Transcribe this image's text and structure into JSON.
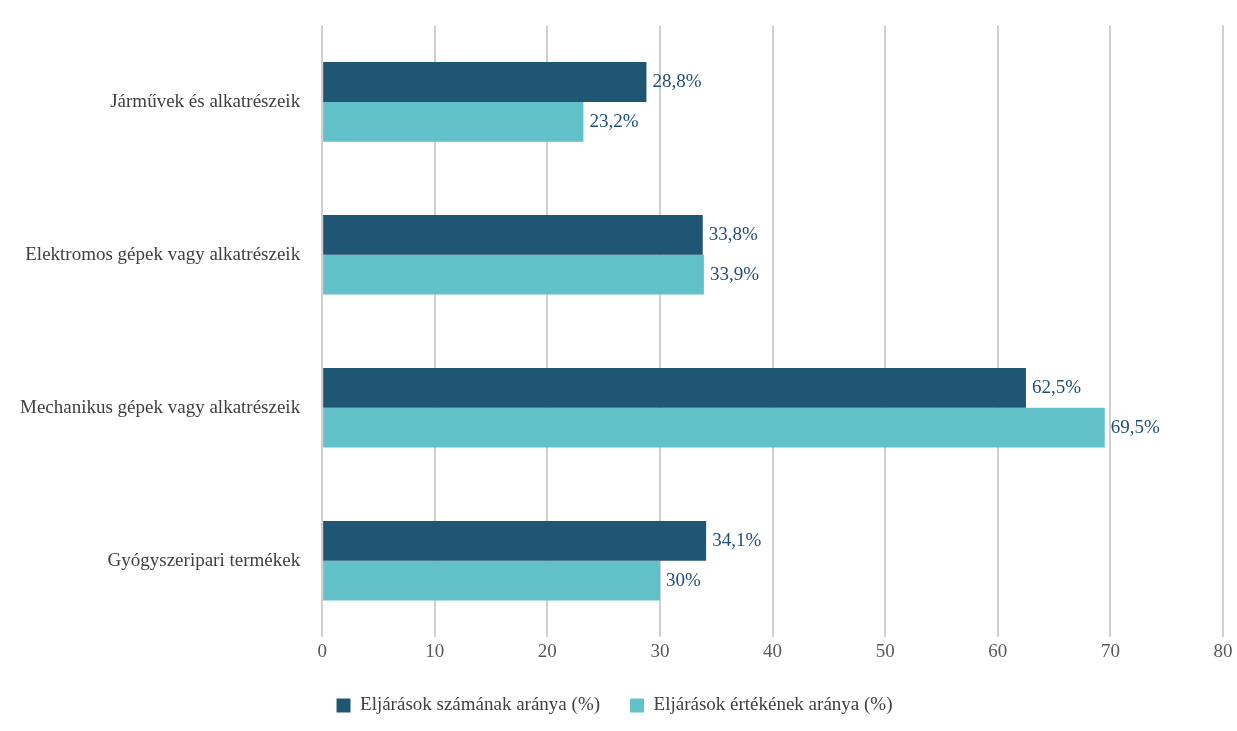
{
  "chart_data": {
    "type": "bar",
    "orientation": "horizontal",
    "categories": [
      "Járművek és alkatrészeik",
      "Elektromos gépek vagy alkatrészeik",
      "Mechanikus gépek vagy alkatrészeik",
      "Gyógyszeripari termékek"
    ],
    "series": [
      {
        "name": "Eljárások számának aránya (%)",
        "color": "#1f5673",
        "values": [
          28.8,
          33.8,
          62.5,
          34.1
        ],
        "value_labels": [
          "28,8%",
          "33,8%",
          "62,5%",
          "34,1%"
        ]
      },
      {
        "name": "Eljárások értékének aránya (%)",
        "color": "#62c1c8",
        "values": [
          23.2,
          33.9,
          69.5,
          30
        ],
        "value_labels": [
          "23,2%",
          "33,9%",
          "69,5%",
          "30%"
        ]
      }
    ],
    "xlim": [
      0,
      80
    ],
    "xticks": [
      0,
      10,
      20,
      30,
      40,
      50,
      60,
      70,
      80
    ],
    "grid": "x",
    "legend": "bottom"
  }
}
